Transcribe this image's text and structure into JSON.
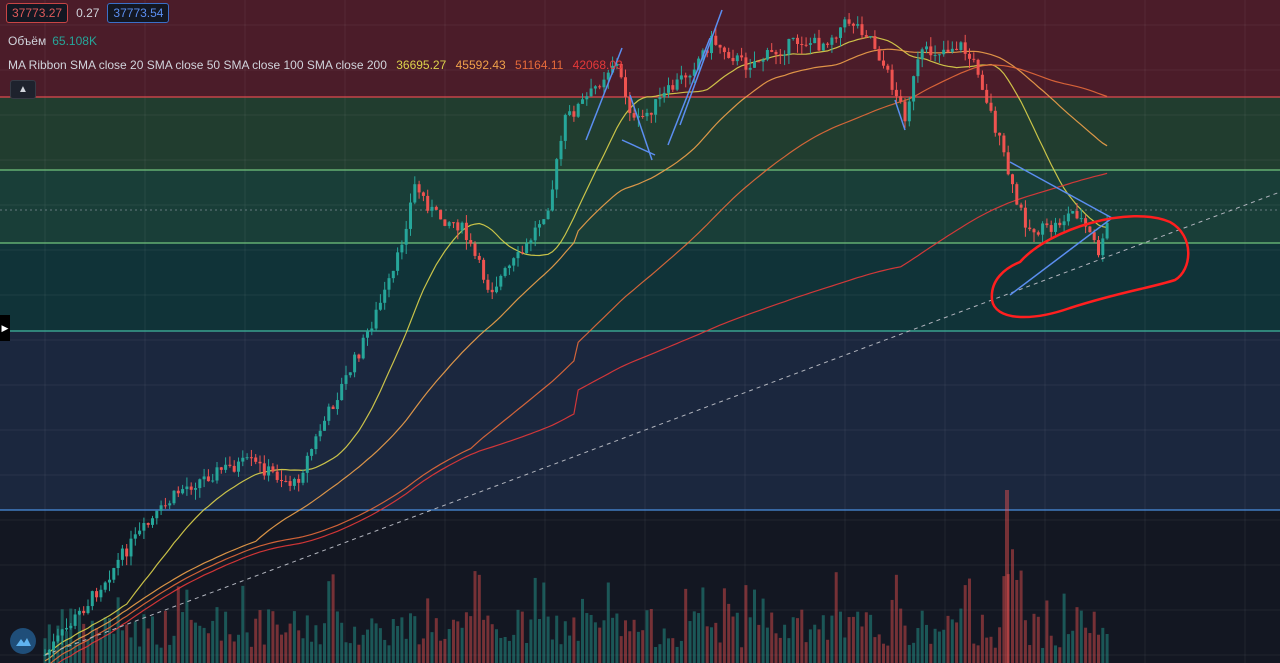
{
  "header": {
    "bid": "37773.27",
    "spread": "0.27",
    "ask": "37773.54"
  },
  "volume_indicator": {
    "label": "Объём",
    "value": "65.108K"
  },
  "ma_ribbon": {
    "label": "MA Ribbon SMA close 20 SMA close 50 SMA close 100 SMA close 200",
    "values": [
      "36695.27",
      "45592.43",
      "51164.11",
      "42068.03"
    ],
    "colors": [
      "#ddd34b",
      "#f0a14a",
      "#e66a3a",
      "#e63939"
    ]
  },
  "icons": {
    "collapse": "chevron-up-icon",
    "side_panel": "chevron-right-icon",
    "logo": "tradingview-cloud-icon"
  },
  "colors": {
    "up": "#26a69a",
    "down": "#ef5350",
    "background": "#131722"
  },
  "chart_data": {
    "type": "candlestick",
    "series": [
      {
        "name": "SMA close 20"
      },
      {
        "name": "SMA close 50"
      },
      {
        "name": "SMA close 100"
      },
      {
        "name": "SMA close 200"
      }
    ],
    "price_zones": [
      {
        "color": "#7a2030"
      },
      {
        "color": "#2e5d3a"
      },
      {
        "color": "#1f5e4a"
      },
      {
        "color": "#0e4a4a"
      },
      {
        "color": "#233456"
      }
    ],
    "grid": true
  }
}
